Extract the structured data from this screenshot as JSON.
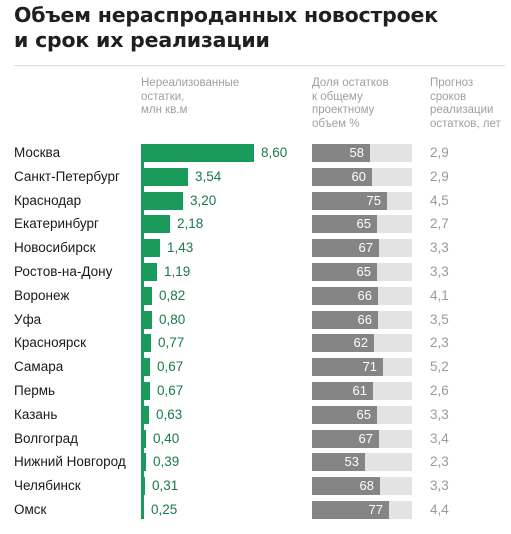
{
  "title": {
    "line1": "Объем нераспроданных новостроек",
    "line2": "и срок их реализации"
  },
  "columns": {
    "remaining": [
      "Нереализованные",
      "остатки,",
      "млн кв.м"
    ],
    "share": [
      "Доля остатков",
      "к общему",
      "проектному",
      "объем %"
    ],
    "forecast": [
      "Прогноз",
      "сроков",
      "реализации",
      "остатков, лет"
    ]
  },
  "colors": {
    "green": "#1a9b5b",
    "green_text": "#1a7a4a",
    "share_bar": "#858585",
    "share_bg": "#e3e3e3",
    "forecast_text": "#9a9a9a"
  },
  "chart_data": {
    "type": "table",
    "xlim_remaining": [
      0,
      8.6
    ],
    "xlim_share": [
      0,
      100
    ],
    "rows": [
      {
        "region": "Москва",
        "remaining": "8,60",
        "remaining_num": 8.6,
        "share": "58",
        "share_num": 58,
        "forecast": "2,9"
      },
      {
        "region": "Санкт-Петербург",
        "remaining": "3,54",
        "remaining_num": 3.54,
        "share": "60",
        "share_num": 60,
        "forecast": "2,9"
      },
      {
        "region": "Краснодар",
        "remaining": "3,20",
        "remaining_num": 3.2,
        "share": "75",
        "share_num": 75,
        "forecast": "4,5"
      },
      {
        "region": "Екатеринбург",
        "remaining": "2,18",
        "remaining_num": 2.18,
        "share": "65",
        "share_num": 65,
        "forecast": "2,7"
      },
      {
        "region": "Новосибирск",
        "remaining": "1,43",
        "remaining_num": 1.43,
        "share": "67",
        "share_num": 67,
        "forecast": "3,3"
      },
      {
        "region": "Ростов-на-Дону",
        "remaining": "1,19",
        "remaining_num": 1.19,
        "share": "65",
        "share_num": 65,
        "forecast": "3,3"
      },
      {
        "region": "Воронеж",
        "remaining": "0,82",
        "remaining_num": 0.82,
        "share": "66",
        "share_num": 66,
        "forecast": "4,1"
      },
      {
        "region": "Уфа",
        "remaining": "0,80",
        "remaining_num": 0.8,
        "share": "66",
        "share_num": 66,
        "forecast": "3,5"
      },
      {
        "region": "Красноярск",
        "remaining": "0,77",
        "remaining_num": 0.77,
        "share": "62",
        "share_num": 62,
        "forecast": "2,3"
      },
      {
        "region": "Самара",
        "remaining": "0,67",
        "remaining_num": 0.67,
        "share": "71",
        "share_num": 71,
        "forecast": "5,2"
      },
      {
        "region": "Пермь",
        "remaining": "0,67",
        "remaining_num": 0.67,
        "share": "61",
        "share_num": 61,
        "forecast": "2,6"
      },
      {
        "region": "Казань",
        "remaining": "0,63",
        "remaining_num": 0.63,
        "share": "65",
        "share_num": 65,
        "forecast": "3,3"
      },
      {
        "region": "Волгоград",
        "remaining": "0,40",
        "remaining_num": 0.4,
        "share": "67",
        "share_num": 67,
        "forecast": "3,4"
      },
      {
        "region": "Нижний Новгород",
        "remaining": "0,39",
        "remaining_num": 0.39,
        "share": "53",
        "share_num": 53,
        "forecast": "2,3"
      },
      {
        "region": "Челябинск",
        "remaining": "0,31",
        "remaining_num": 0.31,
        "share": "68",
        "share_num": 68,
        "forecast": "3,3"
      },
      {
        "region": "Омск",
        "remaining": "0,25",
        "remaining_num": 0.25,
        "share": "77",
        "share_num": 77,
        "forecast": "4,4"
      }
    ]
  }
}
